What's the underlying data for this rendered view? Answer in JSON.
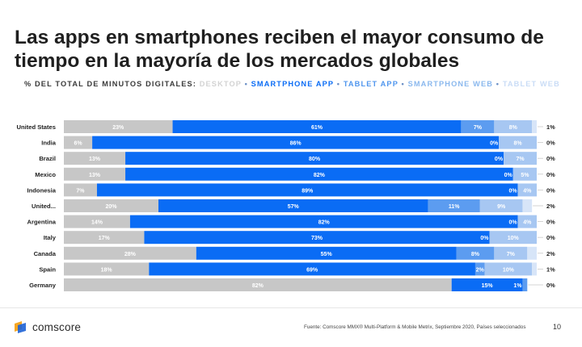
{
  "title": "Las apps en smartphones reciben el mayor consumo de tiempo en la mayoría de los mercados globales",
  "subtitle": {
    "lead": "% DEL TOTAL DE MINUTOS DIGITALES:",
    "sep": "•",
    "items": [
      {
        "label": "DESKTOP",
        "color": "#d3d3d3"
      },
      {
        "label": "SMARTPHONE APP",
        "color": "#0a6cf5"
      },
      {
        "label": "TABLET APP",
        "color": "#4f96ee"
      },
      {
        "label": "SMARTPHONE WEB",
        "color": "#8ab8ee"
      },
      {
        "label": "TABLET WEB",
        "color": "#c9dcf6"
      }
    ]
  },
  "chart_data": {
    "type": "bar",
    "orientation": "horizontal",
    "stacked": true,
    "categories": [
      "United States",
      "India",
      "Brazil",
      "Mexico",
      "Indonesia",
      "United...",
      "Argentina",
      "Italy",
      "Canada",
      "Spain",
      "Germany"
    ],
    "series": [
      {
        "name": "DESKTOP",
        "color": "#c7c7c7",
        "values": [
          23,
          6,
          13,
          13,
          7,
          20,
          14,
          17,
          28,
          18,
          82
        ]
      },
      {
        "name": "SMARTPHONE APP",
        "color": "#0a6cf5",
        "values": [
          61,
          86,
          80,
          82,
          89,
          57,
          82,
          73,
          55,
          69,
          15
        ]
      },
      {
        "name": "TABLET APP",
        "color": "#5c9cf0",
        "values": [
          7,
          0,
          0,
          0,
          0,
          11,
          0,
          0,
          8,
          2,
          1
        ]
      },
      {
        "name": "SMARTPHONE WEB",
        "color": "#a7c7f2",
        "values": [
          8,
          8,
          7,
          5,
          4,
          9,
          4,
          10,
          7,
          10,
          0
        ]
      },
      {
        "name": "TABLET WEB",
        "color": "#d7e5f8",
        "values": [
          1,
          0,
          0,
          0,
          0,
          2,
          0,
          0,
          2,
          1,
          0
        ]
      }
    ],
    "segment_labels": [
      [
        "23%",
        "61%",
        "7%",
        "8%",
        ""
      ],
      [
        "6%",
        "86%",
        "0%",
        "8%",
        ""
      ],
      [
        "13%",
        "80%",
        "0%",
        "7%",
        ""
      ],
      [
        "13%",
        "82%",
        "0%",
        "5%",
        ""
      ],
      [
        "7%",
        "89%",
        "0%",
        "4%",
        ""
      ],
      [
        "20%",
        "57%",
        "11%",
        "9%",
        ""
      ],
      [
        "14%",
        "82%",
        "0%",
        "4%",
        ""
      ],
      [
        "17%",
        "73%",
        "0%",
        "10%",
        ""
      ],
      [
        "28%",
        "55%",
        "8%",
        "7%",
        ""
      ],
      [
        "18%",
        "69%",
        "2%",
        "10%",
        ""
      ],
      [
        "82%",
        "15%",
        "1%",
        "",
        ""
      ]
    ],
    "outside_labels": [
      "1%",
      "0%",
      "0%",
      "0%",
      "0%",
      "2%",
      "0%",
      "0%",
      "2%",
      "1%",
      "0%"
    ],
    "xlim": [
      0,
      100
    ]
  },
  "footer": {
    "logo": "comscore",
    "source": "Fuente: Comscore MMX® Multi-Platform & Mobile Metrix, Septiembre 2020, Países seleccionados",
    "page": "10"
  }
}
